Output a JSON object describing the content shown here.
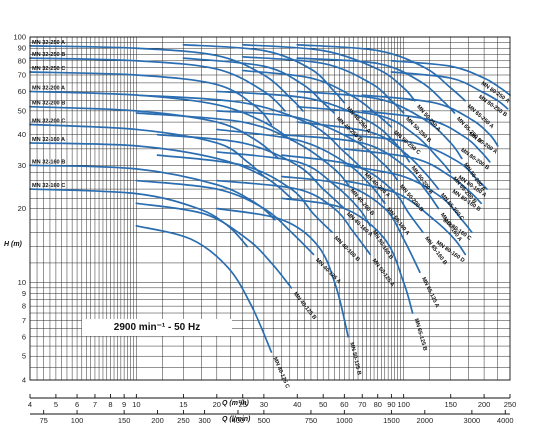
{
  "chart_data": {
    "type": "line",
    "annotation": "2900 min⁻¹ - 50 Hz",
    "ylabel": "H (m)",
    "xlabel_top": "Q (m³/h)",
    "xlabel_bottom": "Q (l/min)",
    "y_scale": "log",
    "x_scale": "log",
    "ylim": [
      4,
      100
    ],
    "xlim_m3h": [
      4,
      250
    ],
    "grid": true,
    "y_ticks": [
      "4",
      "5",
      "6",
      "7",
      "8",
      "9",
      "10",
      "20",
      "30",
      "40",
      "50",
      "60",
      "70",
      "80",
      "90",
      "100"
    ],
    "x_ticks_m3h": [
      "4",
      "5",
      "6",
      "7",
      "8",
      "9",
      "10",
      "15",
      "20",
      "25",
      "30",
      "40",
      "50",
      "60",
      "70",
      "80",
      "90",
      "100",
      "150",
      "200",
      "250"
    ],
    "x_ticks_lmin": [
      "75",
      "100",
      "150",
      "200",
      "250",
      "300",
      "400",
      "500",
      "750",
      "1000",
      "1500",
      "2000",
      "3000",
      "4000"
    ],
    "series": [
      {
        "name": "MN 32-250 A",
        "x": [
          4,
          10,
          20,
          30,
          38,
          42
        ],
        "y": [
          92,
          90,
          84,
          70,
          56,
          50
        ]
      },
      {
        "name": "MN 32-250 B",
        "x": [
          4,
          10,
          20,
          30,
          36
        ],
        "y": [
          82,
          80,
          74,
          60,
          50
        ]
      },
      {
        "name": "MN 32-250 C",
        "x": [
          4,
          10,
          20,
          28,
          32
        ],
        "y": [
          72,
          70,
          64,
          52,
          44
        ]
      },
      {
        "name": "MN 32-200 A",
        "x": [
          4,
          10,
          20,
          30,
          38
        ],
        "y": [
          60,
          58,
          53,
          45,
          38
        ]
      },
      {
        "name": "MN 32-200 B",
        "x": [
          4,
          10,
          20,
          28,
          34
        ],
        "y": [
          52,
          50,
          45,
          38,
          32
        ]
      },
      {
        "name": "MN 32-200 C",
        "x": [
          4,
          10,
          20,
          26,
          30
        ],
        "y": [
          44,
          42,
          37,
          31,
          27
        ]
      },
      {
        "name": "MN 32-160 A",
        "x": [
          4,
          10,
          20,
          30,
          38
        ],
        "y": [
          37,
          36,
          32,
          27,
          22
        ]
      },
      {
        "name": "MN 32-160 B",
        "x": [
          4,
          10,
          20,
          28,
          33
        ],
        "y": [
          30,
          29,
          25,
          21,
          18
        ]
      },
      {
        "name": "MN 32-160 C",
        "x": [
          4,
          10,
          17,
          22,
          26
        ],
        "y": [
          24,
          23,
          20,
          17,
          14
        ]
      },
      {
        "name": "MN 40-250 A",
        "x": [
          15,
          30,
          45,
          55,
          60
        ],
        "y": [
          93,
          88,
          74,
          60,
          54
        ]
      },
      {
        "name": "MN 40-250 B",
        "x": [
          15,
          30,
          42,
          50,
          55
        ],
        "y": [
          82,
          76,
          64,
          54,
          49
        ]
      },
      {
        "name": "MN 40-200 A",
        "x": [
          10,
          25,
          45,
          60,
          70
        ],
        "y": [
          58,
          54,
          44,
          34,
          29
        ]
      },
      {
        "name": "MN 40-200 B",
        "x": [
          10,
          25,
          40,
          55,
          62
        ],
        "y": [
          49,
          45,
          37,
          29,
          25
        ]
      },
      {
        "name": "MN 40-160 A",
        "x": [
          12,
          25,
          40,
          50,
          60
        ],
        "y": [
          40,
          37,
          30,
          24,
          20
        ]
      },
      {
        "name": "MN 40-160 B",
        "x": [
          12,
          25,
          38,
          46,
          54
        ],
        "y": [
          33,
          30,
          24,
          19,
          16
        ]
      },
      {
        "name": "MN 40-125 A",
        "x": [
          10,
          20,
          30,
          38,
          46
        ],
        "y": [
          26,
          24,
          20,
          16,
          13
        ]
      },
      {
        "name": "MN 40-125 B",
        "x": [
          10,
          18,
          26,
          32,
          38
        ],
        "y": [
          21,
          19,
          15,
          12,
          9.5
        ]
      },
      {
        "name": "MN 40-125 C",
        "x": [
          10,
          16,
          22,
          27,
          32
        ],
        "y": [
          17,
          15,
          11.5,
          8,
          5.2
        ]
      },
      {
        "name": "MN 50-250 A",
        "x": [
          25,
          50,
          80,
          100,
          110
        ],
        "y": [
          93,
          88,
          74,
          62,
          55
        ]
      },
      {
        "name": "MN 50-250 B",
        "x": [
          25,
          50,
          75,
          90,
          100
        ],
        "y": [
          83,
          78,
          65,
          55,
          49
        ]
      },
      {
        "name": "MN 50-250 C",
        "x": [
          25,
          45,
          65,
          80,
          90
        ],
        "y": [
          73,
          68,
          57,
          48,
          43
        ]
      },
      {
        "name": "MN 50-200 A",
        "x": [
          20,
          45,
          75,
          95,
          105
        ],
        "y": [
          60,
          56,
          45,
          36,
          31
        ]
      },
      {
        "name": "MN 50-200 B",
        "x": [
          20,
          40,
          65,
          85,
          95
        ],
        "y": [
          50,
          47,
          38,
          30,
          26
        ]
      },
      {
        "name": "MN 50-160 A",
        "x": [
          20,
          40,
          60,
          75,
          85
        ],
        "y": [
          42,
          38,
          31,
          25,
          21
        ]
      },
      {
        "name": "MN 50-160 B",
        "x": [
          20,
          40,
          55,
          68,
          75
        ],
        "y": [
          34,
          31,
          25,
          20,
          17
        ]
      },
      {
        "name": "MN 50-125 A",
        "x": [
          20,
          40,
          55,
          65,
          75
        ],
        "y": [
          26,
          24,
          20,
          16,
          13
        ]
      },
      {
        "name": "MN 50-125 B",
        "x": [
          20,
          35,
          48,
          56,
          62
        ],
        "y": [
          20,
          18,
          14,
          9.5,
          6
        ]
      },
      {
        "name": "MN 65-250 A",
        "x": [
          40,
          80,
          120,
          150,
          170
        ],
        "y": [
          93,
          88,
          75,
          62,
          55
        ]
      },
      {
        "name": "MN 65-250 B",
        "x": [
          40,
          80,
          115,
          140,
          155
        ],
        "y": [
          82,
          78,
          66,
          55,
          49
        ]
      },
      {
        "name": "MN 65-200 A",
        "x": [
          40,
          80,
          120,
          150,
          165
        ],
        "y": [
          60,
          56,
          46,
          37,
          32
        ]
      },
      {
        "name": "MN 65-200 B",
        "x": [
          40,
          80,
          110,
          135,
          150
        ],
        "y": [
          52,
          48,
          40,
          32,
          28
        ]
      },
      {
        "name": "MN 65-200 C",
        "x": [
          40,
          75,
          100,
          120,
          135
        ],
        "y": [
          45,
          41,
          34,
          28,
          24
        ]
      },
      {
        "name": "MN 65-160 A",
        "x": [
          35,
          70,
          100,
          120,
          135
        ],
        "y": [
          40,
          37,
          30,
          24,
          20
        ]
      },
      {
        "name": "MN 65-160 B",
        "x": [
          35,
          65,
          90,
          105,
          118
        ],
        "y": [
          33,
          30,
          24,
          19,
          16
        ]
      },
      {
        "name": "MN 65-125 A",
        "x": [
          35,
          60,
          85,
          100,
          115
        ],
        "y": [
          27,
          25,
          20,
          15,
          11
        ]
      },
      {
        "name": "MN 65-125 B",
        "x": [
          35,
          60,
          85,
          100,
          108
        ],
        "y": [
          22,
          20,
          15,
          10,
          7.5
        ]
      },
      {
        "name": "MN 80-250 A",
        "x": [
          90,
          150,
          200,
          230,
          250
        ],
        "y": [
          80,
          76,
          68,
          62,
          58
        ]
      },
      {
        "name": "MN 80-250 B",
        "x": [
          90,
          150,
          195,
          225,
          245
        ],
        "y": [
          72,
          68,
          60,
          55,
          51
        ]
      },
      {
        "name": "MN 80-200 A",
        "x": [
          70,
          130,
          180,
          210,
          225
        ],
        "y": [
          58,
          54,
          46,
          40,
          36
        ]
      },
      {
        "name": "MN 80-200 B",
        "x": [
          70,
          125,
          170,
          195,
          210
        ],
        "y": [
          50,
          46,
          39,
          34,
          31
        ]
      },
      {
        "name": "MN 80-160 A",
        "x": [
          60,
          110,
          160,
          190,
          205
        ],
        "y": [
          40,
          37,
          31,
          26,
          24
        ]
      },
      {
        "name": "MN 80-160 B",
        "x": [
          60,
          110,
          150,
          180,
          195
        ],
        "y": [
          35,
          32,
          27,
          23,
          21
        ]
      },
      {
        "name": "MN 80-160 C",
        "x": [
          60,
          100,
          140,
          165,
          180
        ],
        "y": [
          30,
          27,
          22,
          18,
          16
        ]
      },
      {
        "name": "MN 80-160 D",
        "x": [
          60,
          95,
          130,
          155,
          170
        ],
        "y": [
          26,
          23,
          18,
          15,
          13
        ]
      }
    ]
  }
}
